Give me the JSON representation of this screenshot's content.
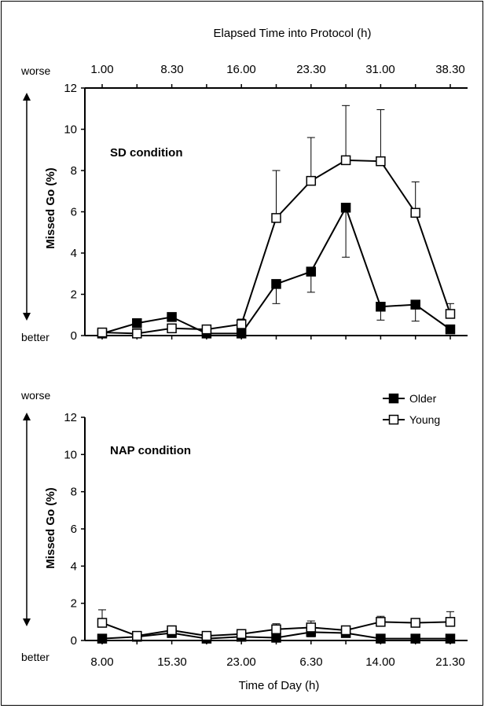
{
  "chart_data": [
    {
      "type": "line",
      "title": "",
      "condition_label": "SD condition",
      "ylabel": "Missed Go (%)",
      "top_axis_label": "Elapsed Time into Protocol (h)",
      "top_ticks": [
        "1.00",
        "8.30",
        "16.00",
        "23.30",
        "31.00",
        "38.30"
      ],
      "y_ticks": [
        "0",
        "2",
        "4",
        "6",
        "8",
        "10",
        "12"
      ],
      "ylim": [
        0,
        12
      ],
      "worse_label": "worse",
      "better_label": "better",
      "x": [
        1,
        2,
        3,
        4,
        5,
        6,
        7,
        8,
        9,
        10,
        11
      ],
      "series": [
        {
          "name": "Older",
          "marker": "filled-square",
          "values": [
            0.1,
            0.6,
            0.9,
            0.1,
            0.1,
            2.5,
            3.1,
            6.2,
            1.4,
            1.5,
            0.3
          ],
          "error": [
            0,
            0,
            0,
            0,
            0,
            0.95,
            1.0,
            2.4,
            0.65,
            0.8,
            0
          ]
        },
        {
          "name": "Young",
          "marker": "open-square",
          "values": [
            0.15,
            0.1,
            0.35,
            0.3,
            0.55,
            5.7,
            7.5,
            8.5,
            8.45,
            5.95,
            1.05
          ],
          "error": [
            0,
            0,
            0,
            0,
            0.25,
            2.3,
            2.1,
            2.65,
            2.5,
            1.5,
            0.5
          ]
        }
      ]
    },
    {
      "type": "line",
      "title": "",
      "condition_label": "NAP condition",
      "ylabel": "Missed Go (%)",
      "xlabel": "Time of Day (h)",
      "x_ticks": [
        "8.00",
        "15.30",
        "23.00",
        "6.30",
        "14.00",
        "21.30"
      ],
      "y_ticks": [
        "0",
        "2",
        "4",
        "6",
        "8",
        "10",
        "12"
      ],
      "ylim": [
        0,
        12
      ],
      "worse_label": "worse",
      "better_label": "better",
      "legend": {
        "position": "top-right",
        "items": [
          "Older",
          "Young"
        ]
      },
      "x": [
        1,
        2,
        3,
        4,
        5,
        6,
        7,
        8,
        9,
        10,
        11
      ],
      "series": [
        {
          "name": "Older",
          "marker": "filled-square",
          "values": [
            0.1,
            0.2,
            0.4,
            0.1,
            0.2,
            0.15,
            0.45,
            0.4,
            0.1,
            0.1,
            0.1
          ],
          "error": [
            0,
            0,
            0.2,
            0,
            0,
            0,
            0.25,
            0.2,
            0,
            0,
            0
          ]
        },
        {
          "name": "Young",
          "marker": "open-square",
          "values": [
            0.95,
            0.25,
            0.55,
            0.25,
            0.35,
            0.6,
            0.7,
            0.55,
            1.0,
            0.95,
            1.0
          ],
          "error": [
            0.7,
            0,
            0,
            0,
            0,
            0.3,
            0.35,
            0,
            0.3,
            0,
            0.55
          ]
        }
      ]
    }
  ]
}
